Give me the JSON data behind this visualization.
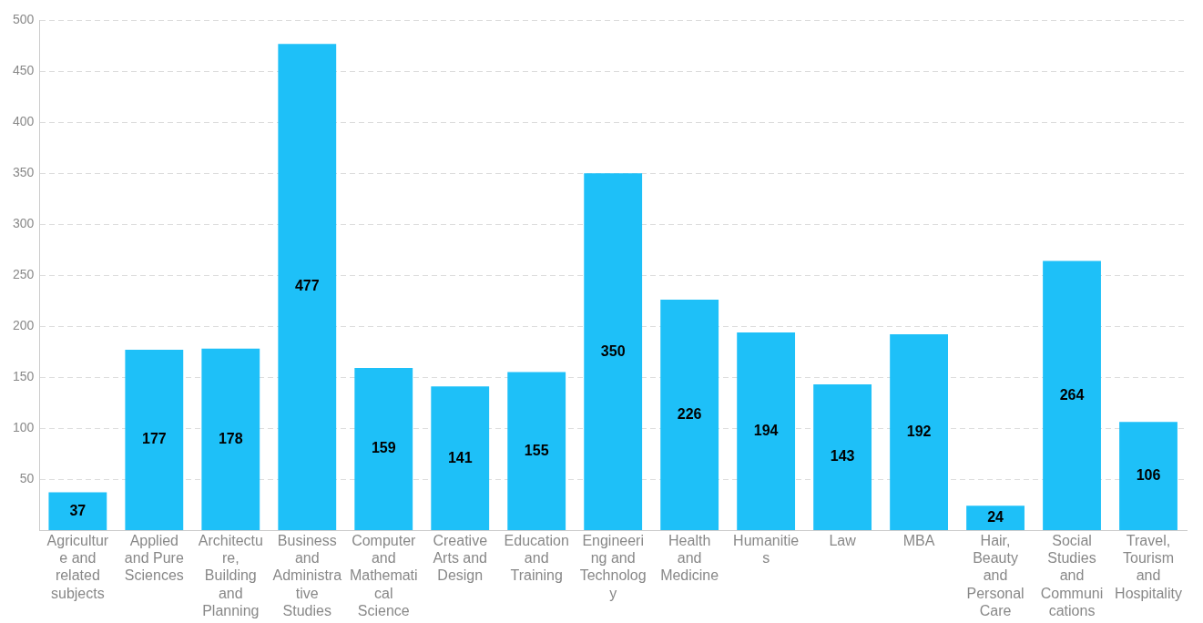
{
  "chart_data": {
    "type": "bar",
    "categories": [
      "Agriculture and related subjects",
      "Applied and Pure Sciences",
      "Architecture, Building and Planning",
      "Business and Administrative Studies",
      "Computer and Mathematical Science",
      "Creative Arts and Design",
      "Education and Training",
      "Engineering and Technology",
      "Health and Medicine",
      "Humanities",
      "Law",
      "MBA",
      "Hair, Beauty and Personal Care",
      "Social Studies and Communications",
      "Travel, Tourism and Hospitality"
    ],
    "values": [
      37,
      177,
      178,
      477,
      159,
      141,
      155,
      350,
      226,
      194,
      143,
      192,
      24,
      264,
      106
    ],
    "color": "#1ec0f8",
    "ylim": [
      0,
      500
    ],
    "yticks": [
      50,
      100,
      150,
      200,
      250,
      300,
      350,
      400,
      450,
      500
    ],
    "grid": "y",
    "data_labels": true
  }
}
